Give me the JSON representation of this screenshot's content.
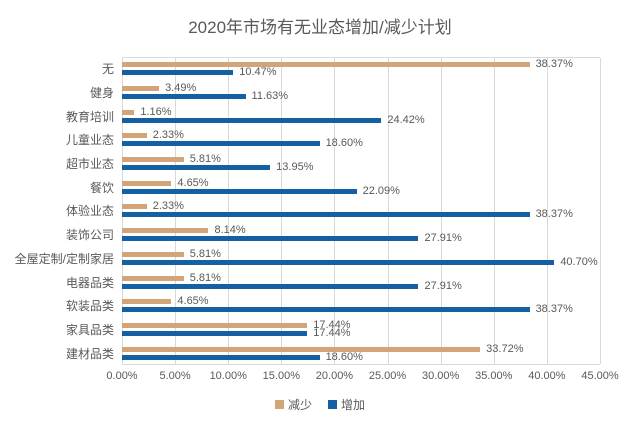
{
  "chart_data": {
    "type": "bar",
    "orientation": "horizontal",
    "title": "2020年市场有无业态增加/减少计划",
    "categories": [
      "无",
      "健身",
      "教育培训",
      "儿童业态",
      "超市业态",
      "餐饮",
      "体验业态",
      "装饰公司",
      "全屋定制/定制家居",
      "电器品类",
      "软装品类",
      "家具品类",
      "建材品类"
    ],
    "series": [
      {
        "name": "减少",
        "color": "#D3A478",
        "values": [
          38.37,
          3.49,
          1.16,
          2.33,
          5.81,
          4.65,
          2.33,
          8.14,
          5.81,
          5.81,
          4.65,
          17.44,
          33.72
        ]
      },
      {
        "name": "增加",
        "color": "#1560A2",
        "values": [
          10.47,
          11.63,
          24.42,
          18.6,
          13.95,
          22.09,
          38.37,
          27.91,
          40.7,
          27.91,
          38.37,
          17.44,
          18.6
        ]
      }
    ],
    "value_label_suffix": "%",
    "xlabel": "",
    "ylabel": "",
    "x_ticks": [
      "0.00%",
      "5.00%",
      "10.00%",
      "15.00%",
      "20.00%",
      "25.00%",
      "30.00%",
      "35.00%",
      "40.00%",
      "45.00%"
    ],
    "xlim": [
      0,
      45
    ],
    "grid": true,
    "gridline_color": "#D9D9D9",
    "text_color": "#595959",
    "legend_position": "bottom"
  }
}
